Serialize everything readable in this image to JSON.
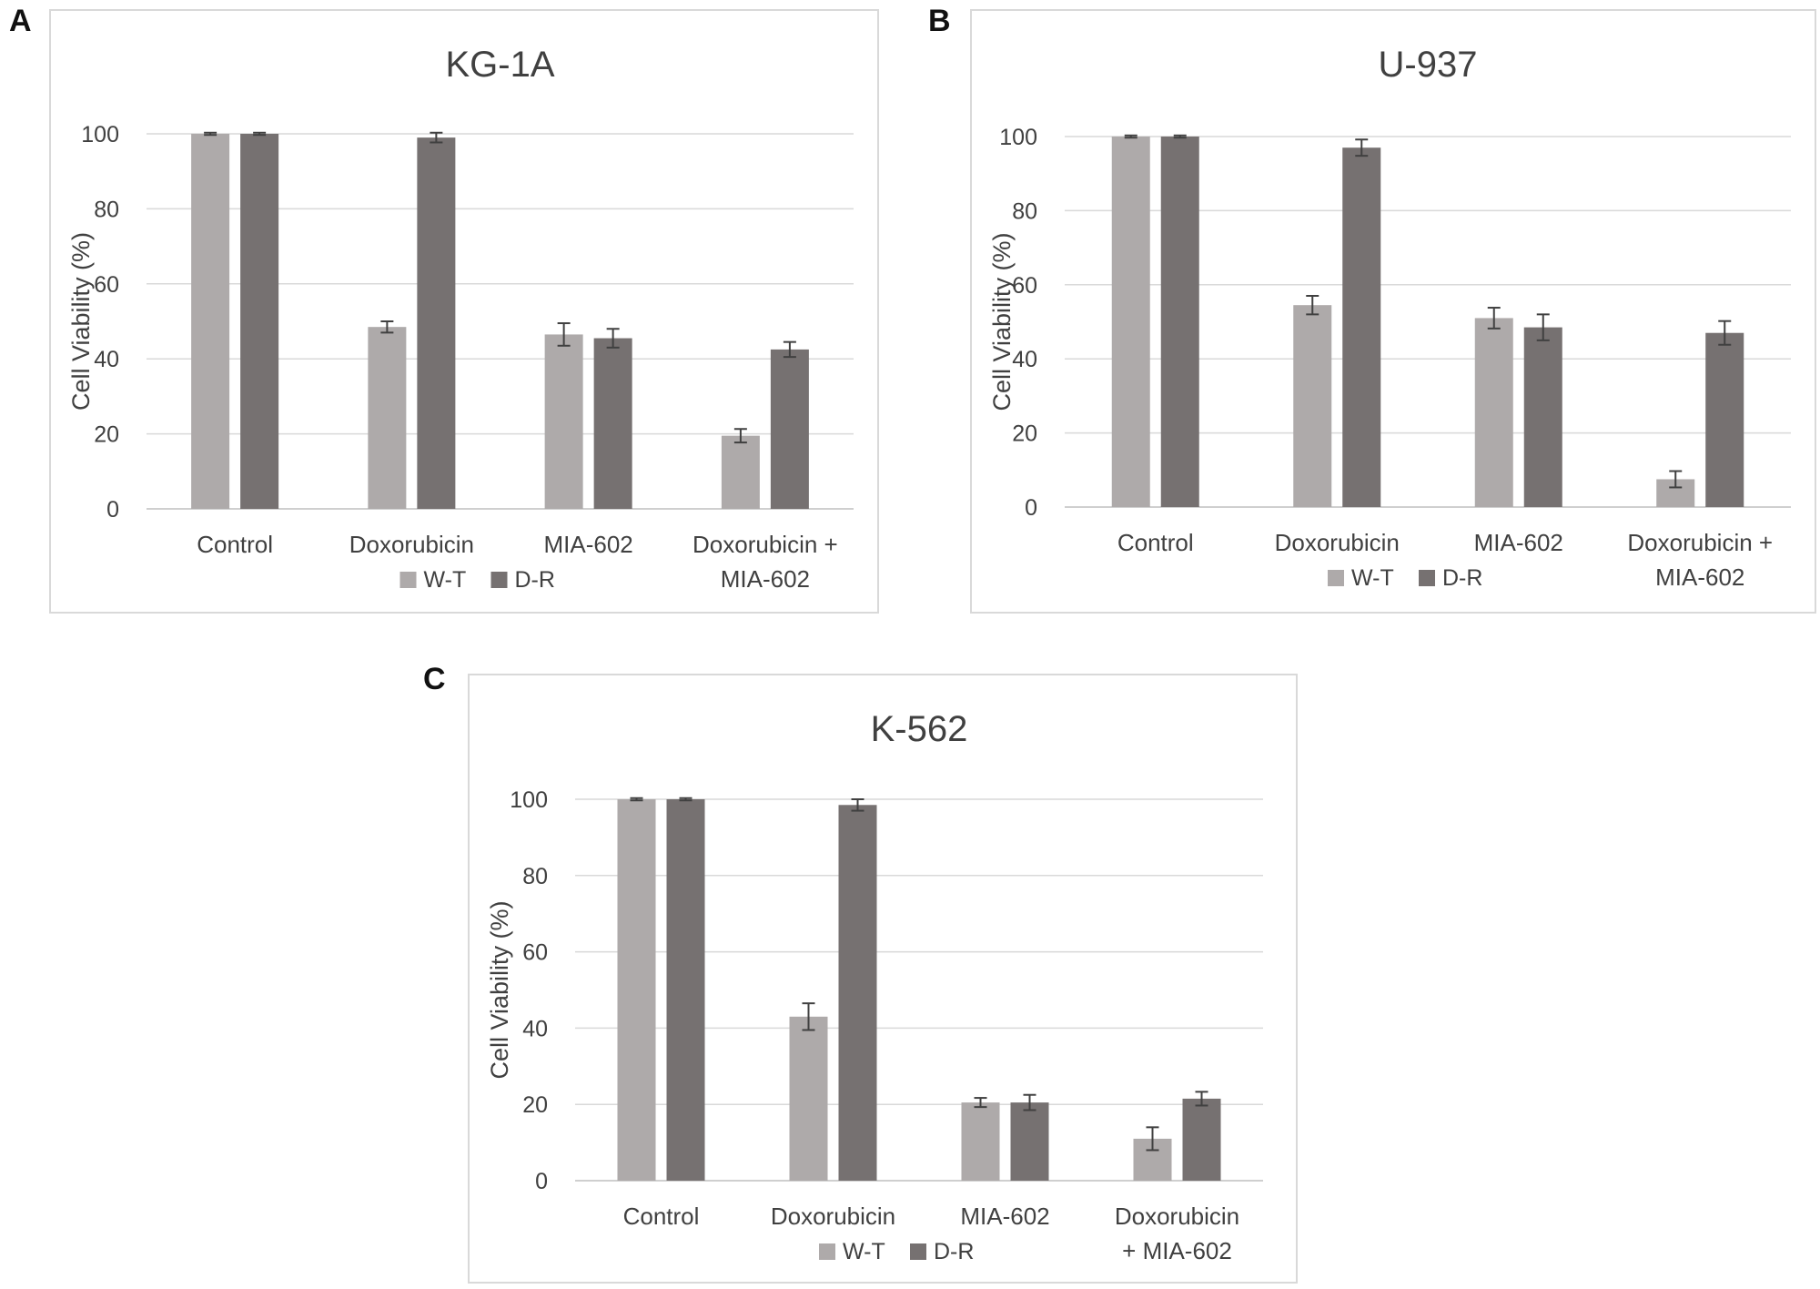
{
  "panels": [
    {
      "letter": "A"
    },
    {
      "letter": "B"
    },
    {
      "letter": "C"
    }
  ],
  "chart_data": [
    {
      "type": "bar",
      "title": "KG-1A",
      "ylabel": "Cell Viability (%)",
      "xlabel": "",
      "categories": [
        "Control",
        "Doxorubicin",
        "MIA-602",
        "Doxorubicin + MIA-602"
      ],
      "category_label_lines": [
        [
          "Control"
        ],
        [
          "Doxorubicin"
        ],
        [
          "MIA-602"
        ],
        [
          "Doxorubicin +",
          "MIA-602"
        ]
      ],
      "ylim": [
        0,
        100
      ],
      "yticks": [
        0,
        20,
        40,
        60,
        80,
        100
      ],
      "grid": true,
      "legend_position": "bottom",
      "series": [
        {
          "name": "W-T",
          "color": "#aeaaaa",
          "values": [
            100,
            48.5,
            46.5,
            19.5
          ],
          "errors": [
            0.3,
            1.5,
            3.0,
            1.8
          ]
        },
        {
          "name": "D-R",
          "color": "#767171",
          "values": [
            100,
            99,
            45.5,
            42.5
          ],
          "errors": [
            0.3,
            1.3,
            2.5,
            2.0
          ]
        }
      ]
    },
    {
      "type": "bar",
      "title": "U-937",
      "ylabel": "Cell Viability (%)",
      "xlabel": "",
      "categories": [
        "Control",
        "Doxorubicin",
        "MIA-602",
        "Doxorubicin + MIA-602"
      ],
      "category_label_lines": [
        [
          "Control"
        ],
        [
          "Doxorubicin"
        ],
        [
          "MIA-602"
        ],
        [
          "Doxorubicin +",
          "MIA-602"
        ]
      ],
      "ylim": [
        0,
        100
      ],
      "yticks": [
        0,
        20,
        40,
        60,
        80,
        100
      ],
      "grid": true,
      "legend_position": "bottom",
      "series": [
        {
          "name": "W-T",
          "color": "#aeaaaa",
          "values": [
            100,
            54.5,
            51,
            7.5
          ],
          "errors": [
            0.3,
            2.5,
            2.8,
            2.2
          ]
        },
        {
          "name": "D-R",
          "color": "#767171",
          "values": [
            100,
            97,
            48.5,
            47
          ],
          "errors": [
            0.3,
            2.2,
            3.5,
            3.2
          ]
        }
      ]
    },
    {
      "type": "bar",
      "title": "K-562",
      "ylabel": "Cell Viability (%)",
      "xlabel": "",
      "categories": [
        "Control",
        "Doxorubicin",
        "MIA-602",
        "Doxorubicin + MIA-602"
      ],
      "category_label_lines": [
        [
          "Control"
        ],
        [
          "Doxorubicin"
        ],
        [
          "MIA-602"
        ],
        [
          "Doxorubicin",
          "+ MIA-602"
        ]
      ],
      "ylim": [
        0,
        100
      ],
      "yticks": [
        0,
        20,
        40,
        60,
        80,
        100
      ],
      "grid": true,
      "legend_position": "bottom",
      "series": [
        {
          "name": "W-T",
          "color": "#aeaaaa",
          "values": [
            100,
            43,
            20.5,
            11
          ],
          "errors": [
            0.3,
            3.5,
            1.2,
            3.0
          ]
        },
        {
          "name": "D-R",
          "color": "#767171",
          "values": [
            100,
            98.5,
            20.5,
            21.5
          ],
          "errors": [
            0.3,
            1.5,
            2.0,
            1.8
          ]
        }
      ]
    }
  ]
}
